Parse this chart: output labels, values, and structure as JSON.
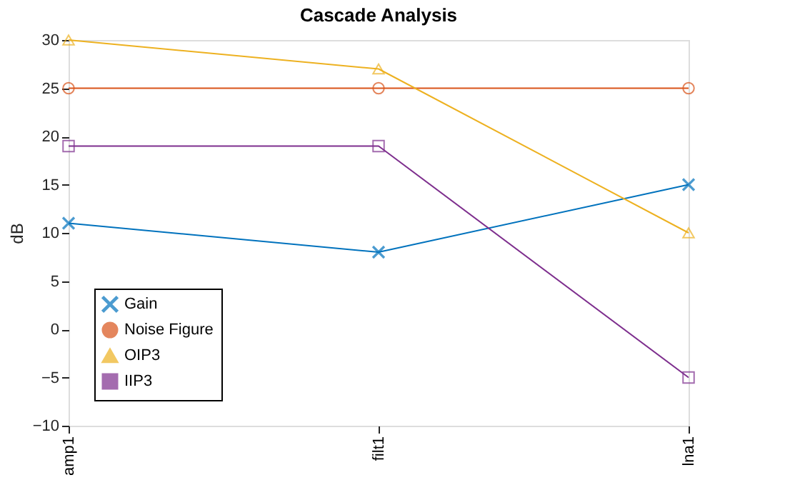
{
  "chart_data": {
    "type": "line",
    "title": "Cascade Analysis",
    "ylabel": "dB",
    "categories": [
      "amp1",
      "filt1",
      "lna1"
    ],
    "ylim": [
      -10,
      30
    ],
    "yticks": [
      -10,
      -5,
      0,
      5,
      10,
      15,
      20,
      25,
      30
    ],
    "grid": false,
    "legend": "bottom left",
    "line_style": "solid",
    "series": [
      {
        "name": "Gain",
        "color": "#0072bd",
        "marker": "cross",
        "values": [
          11,
          8,
          15
        ]
      },
      {
        "name": "Noise Figure",
        "color": "#d95319",
        "marker": "circle",
        "values": [
          25,
          25,
          25
        ]
      },
      {
        "name": "OIP3",
        "color": "#edb120",
        "marker": "triangle",
        "values": [
          30,
          27,
          10
        ]
      },
      {
        "name": "IIP3",
        "color": "#7e2f8e",
        "marker": "square",
        "values": [
          19,
          19,
          -5
        ]
      }
    ]
  }
}
